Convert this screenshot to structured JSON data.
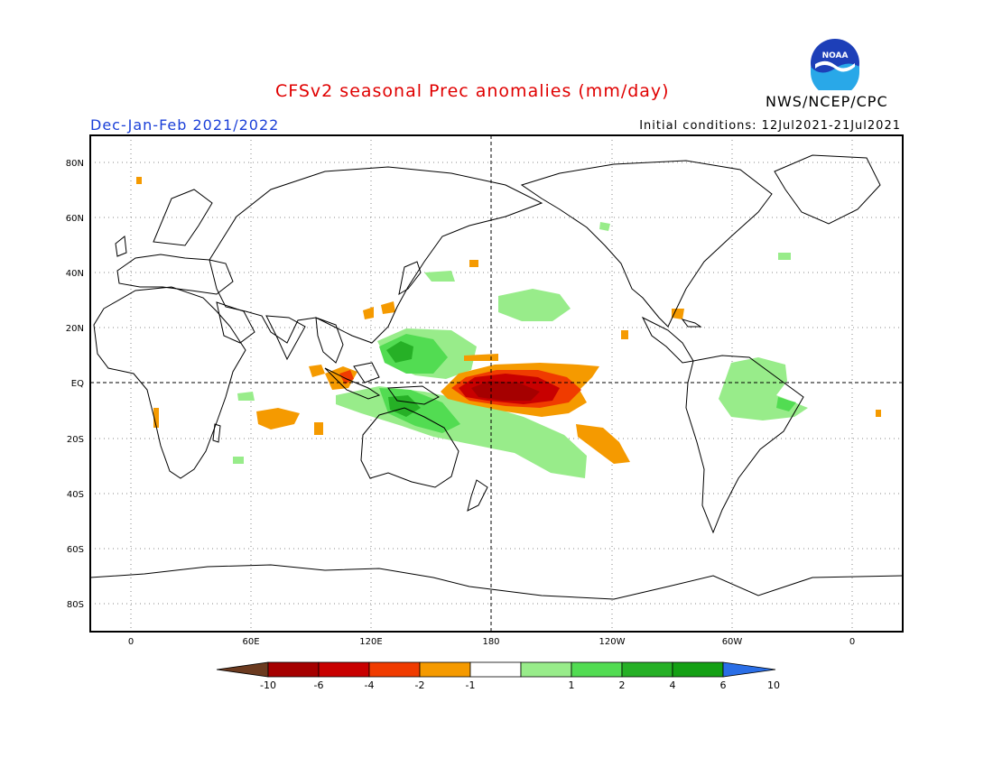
{
  "header": {
    "title": "CFSv2 seasonal Prec anomalies (mm/day)",
    "season": "Dec-Jan-Feb 2021/2022",
    "initial_conditions": "Initial conditions: 12Jul2021-21Jul2021",
    "agency": "NWS/NCEP/CPC",
    "logo_text": "NOAA"
  },
  "map": {
    "lat_labels": [
      "80N",
      "60N",
      "40N",
      "20N",
      "EQ",
      "20S",
      "40S",
      "60S",
      "80S"
    ],
    "lon_labels": [
      "0",
      "60E",
      "120E",
      "180",
      "120W",
      "60W",
      "0"
    ]
  },
  "colorbar": {
    "tick_labels": [
      "-10",
      "-6",
      "-4",
      "-2",
      "-1",
      "1",
      "2",
      "4",
      "6",
      "10"
    ],
    "colors": [
      "#6b3a1f",
      "#a50000",
      "#c80000",
      "#f03b00",
      "#f59a00",
      "#ffffff",
      "#98ec8a",
      "#52dc52",
      "#26b026",
      "#14a014",
      "#2a6ee6"
    ]
  }
}
